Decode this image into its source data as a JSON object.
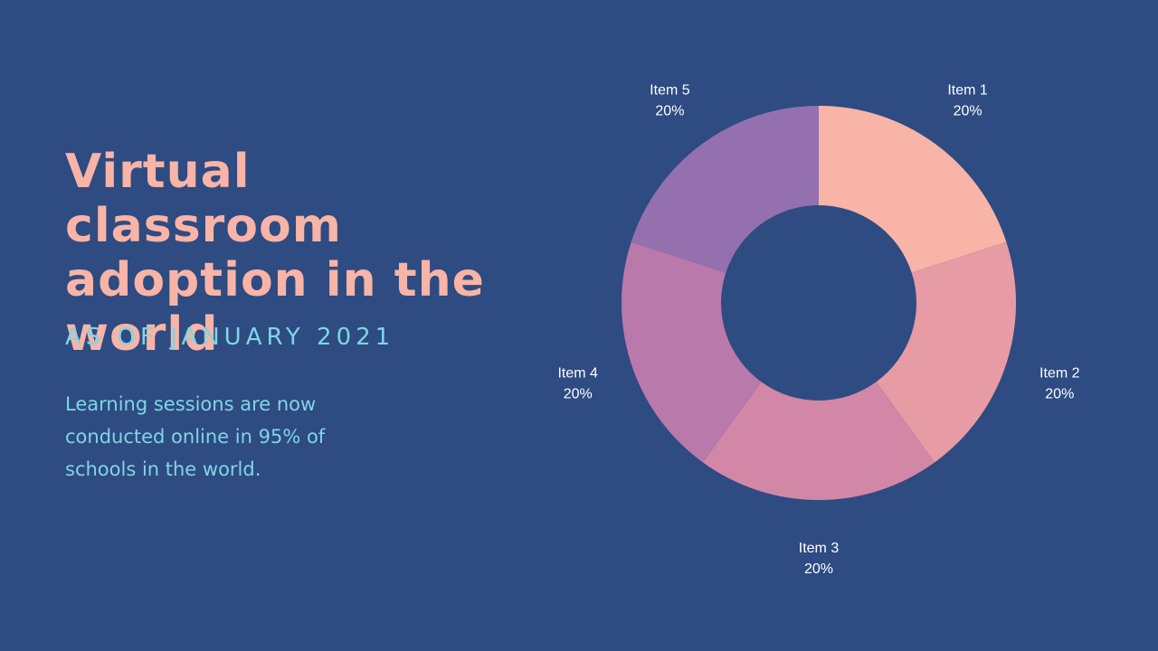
{
  "slide": {
    "title": "Virtual classroom adoption in the world",
    "subtitle": "AS OF JANUARY 2021",
    "body": "Learning sessions are now conducted online in 95% of schools in the world.",
    "background_color": "#2e4b82",
    "title_color": "#f8b4a6",
    "accent_color": "#7fd6e4"
  },
  "chart_data": {
    "type": "pie",
    "variant": "donut",
    "categories": [
      "Item 1",
      "Item 2",
      "Item 3",
      "Item 4",
      "Item 5"
    ],
    "values": [
      20,
      20,
      20,
      20,
      20
    ],
    "labels": [
      "20%",
      "20%",
      "20%",
      "20%",
      "20%"
    ],
    "colors": [
      "#f8b4a6",
      "#e79ba4",
      "#d387a6",
      "#b979ab",
      "#9470ae"
    ],
    "start": "12 o'clock",
    "direction": "clockwise",
    "legend": "none"
  }
}
